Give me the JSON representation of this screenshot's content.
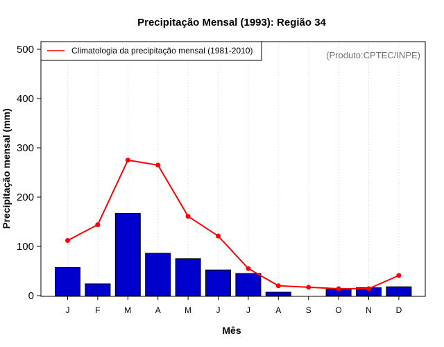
{
  "chart_data": {
    "type": "bar",
    "title": "Precipitação Mensal (1993): Região 34",
    "xlabel": "Mês",
    "ylabel": "Precipitação mensal (mm)",
    "ylim": [
      0,
      500
    ],
    "yticks": [
      "0",
      "100",
      "200",
      "300",
      "400",
      "500"
    ],
    "categories": [
      "J",
      "F",
      "M",
      "A",
      "M",
      "J",
      "J",
      "A",
      "S",
      "O",
      "N",
      "D"
    ],
    "series": [
      {
        "name": "Precipitação mensal (1993)",
        "kind": "bar",
        "color": "#0000cc",
        "values": [
          57,
          24,
          167,
          86,
          75,
          52,
          45,
          7,
          0,
          13,
          16,
          18
        ]
      },
      {
        "name": "Climatologia da precipitação mensal (1981-2010)",
        "kind": "line",
        "color": "#ff0000",
        "values": [
          112,
          144,
          275,
          265,
          161,
          121,
          55,
          20,
          17,
          14,
          14,
          41
        ]
      }
    ],
    "legend": {
      "position": "top-left",
      "entries": [
        "Climatologia da precipitação mensal (1981-2010)"
      ]
    },
    "credit": "(Produto:CPTEC/INPE)",
    "grid": "vertical-dotted"
  }
}
